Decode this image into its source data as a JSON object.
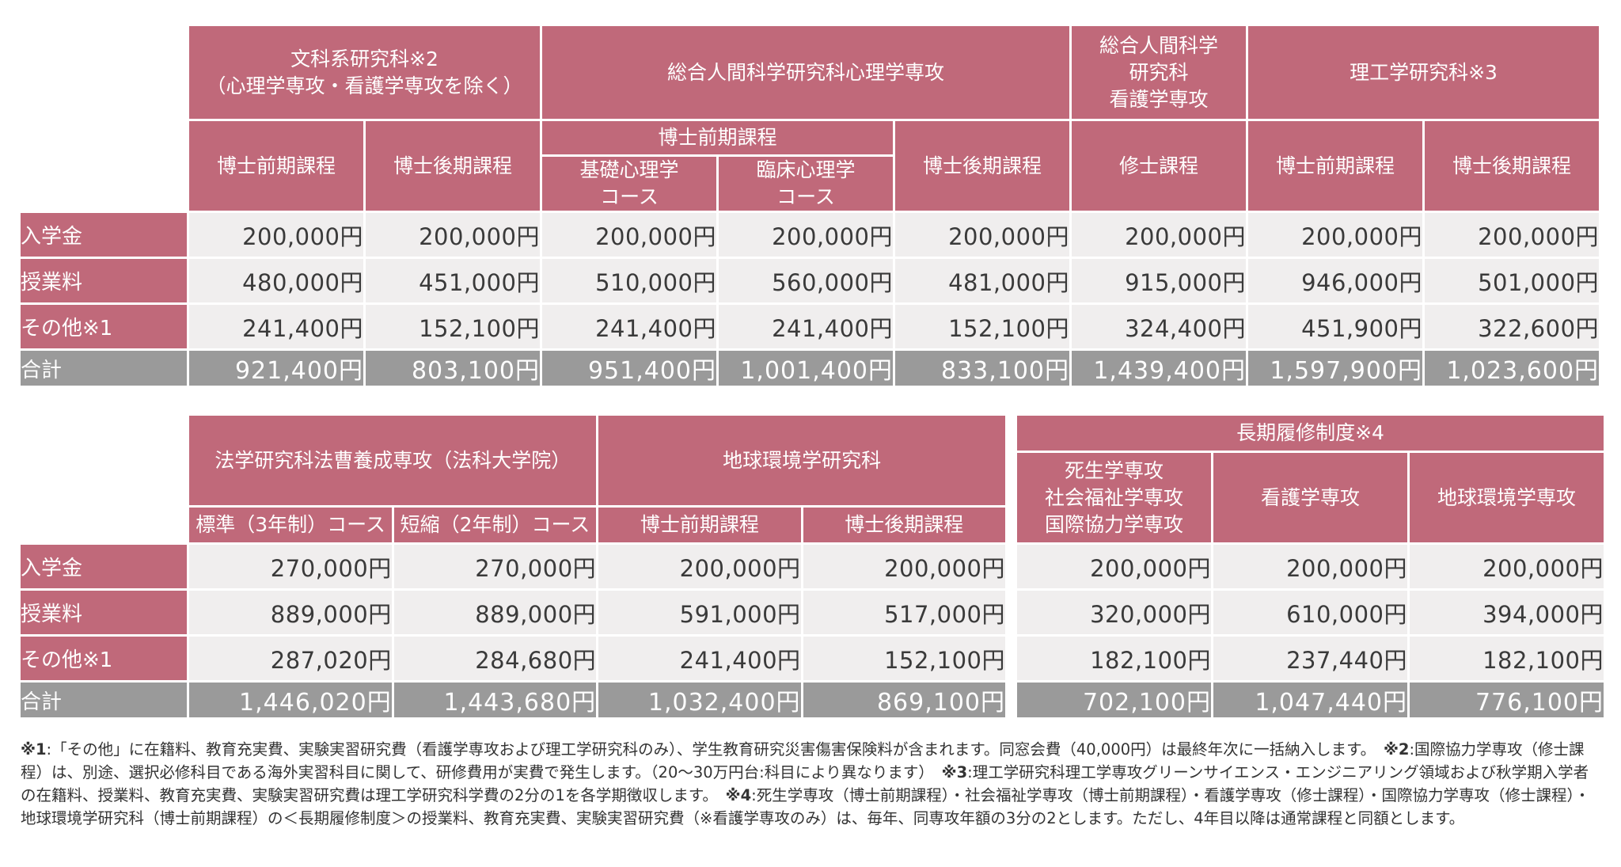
{
  "table1": {
    "groups": {
      "bunka": [
        "文科系研究科※2",
        "（心理学専攻・看護学専攻を除く）"
      ],
      "sogo_psych": "総合人間科学研究科心理学専攻",
      "sogo_nurse": [
        "総合人間科学",
        "研究科",
        "看護学専攻"
      ],
      "riko": "理工学研究科※3"
    },
    "sub": {
      "bunka_zenki": "博士前期課程",
      "bunka_koki": "博士後期課程",
      "psych_zenki": "博士前期課程",
      "psych_kiso": [
        "基礎心理学",
        "コース"
      ],
      "psych_rinsho": [
        "臨床心理学",
        "コース"
      ],
      "psych_koki": "博士後期課程",
      "nurse_shushi": "修士課程",
      "riko_zenki": "博士前期課程",
      "riko_koki": "博士後期課程"
    },
    "rows": {
      "nyugaku": {
        "label": "入学金",
        "values": [
          "200,000円",
          "200,000円",
          "200,000円",
          "200,000円",
          "200,000円",
          "200,000円",
          "200,000円",
          "200,000円"
        ]
      },
      "jugyo": {
        "label": "授業料",
        "values": [
          "480,000円",
          "451,000円",
          "510,000円",
          "560,000円",
          "481,000円",
          "915,000円",
          "946,000円",
          "501,000円"
        ]
      },
      "sonota": {
        "label": "その他※1",
        "values": [
          "241,400円",
          "152,100円",
          "241,400円",
          "241,400円",
          "152,100円",
          "324,400円",
          "451,900円",
          "322,600円"
        ]
      },
      "gokei": {
        "label": "合計",
        "values": [
          "921,400円",
          "803,100円",
          "951,400円",
          "1,001,400円",
          "833,100円",
          "1,439,400円",
          "1,597,900円",
          "1,023,600円"
        ]
      }
    }
  },
  "table2": {
    "groups": {
      "hogaku": "法学研究科法曹養成専攻（法科大学院）",
      "chikyu": "地球環境学研究科"
    },
    "sub": {
      "hyojun": "標準（3年制）コース",
      "tanshuku": "短縮（2年制）コース",
      "chikyu_zenki": "博士前期課程",
      "chikyu_koki": "博士後期課程"
    },
    "rows": {
      "nyugaku": {
        "label": "入学金",
        "values": [
          "270,000円",
          "270,000円",
          "200,000円",
          "200,000円"
        ]
      },
      "jugyo": {
        "label": "授業料",
        "values": [
          "889,000円",
          "889,000円",
          "591,000円",
          "517,000円"
        ]
      },
      "sonota": {
        "label": "その他※1",
        "values": [
          "287,020円",
          "284,680円",
          "241,400円",
          "152,100円"
        ]
      },
      "gokei": {
        "label": "合計",
        "values": [
          "1,446,020円",
          "1,443,680円",
          "1,032,400円",
          "869,100円"
        ]
      }
    }
  },
  "table3": {
    "group": "長期履修制度※4",
    "sub": {
      "shisei": [
        "死生学専攻",
        "社会福祉学専攻",
        "国際協力学専攻"
      ],
      "kango": "看護学専攻",
      "chikyu": "地球環境学専攻"
    },
    "rows": {
      "nyugaku": [
        "200,000円",
        "200,000円",
        "200,000円"
      ],
      "jugyo": [
        "320,000円",
        "610,000円",
        "394,000円"
      ],
      "sonota": [
        "182,100円",
        "237,440円",
        "182,100円"
      ],
      "gokei": [
        "702,100円",
        "1,047,440円",
        "776,100円"
      ]
    }
  },
  "notes": {
    "n1_mark": "※1",
    "n1_text": ":「その他」に在籍料、教育充実費、実験実習研究費（看護学専攻および理工学研究科のみ）、学生教育研究災害傷害保険料が含まれます。同窓会費（40,000円）は最終年次に一括納入します。",
    "n2_mark": "※2",
    "n2_text": ":国際協力学専攻（修士課程）は、別途、選択必修科目である海外実習科目に関して、研修費用が実費で発生します。（20～30万円台:科目により異なります）",
    "n3_mark": "※3",
    "n3_text": ":理工学研究科理工学専攻グリーンサイエンス・エンジニアリング領域および秋学期入学者の在籍料、授業料、教育充実費、実験実習研究費は理工学研究科学費の2分の1を各学期徴収します。",
    "n4_mark": "※4",
    "n4_text": ":死生学専攻（博士前期課程）・社会福祉学専攻（博士前期課程）・看護学専攻（修士課程）・国際協力学専攻（修士課程）・地球環境学研究科（博士前期課程）の＜長期履修制度＞の授業料、教育充実費、実験実習研究費（※看護学専攻のみ）は、毎年、同専攻年額の3分の2とします。ただし、4年目以降は通常課程と同額とします。"
  }
}
